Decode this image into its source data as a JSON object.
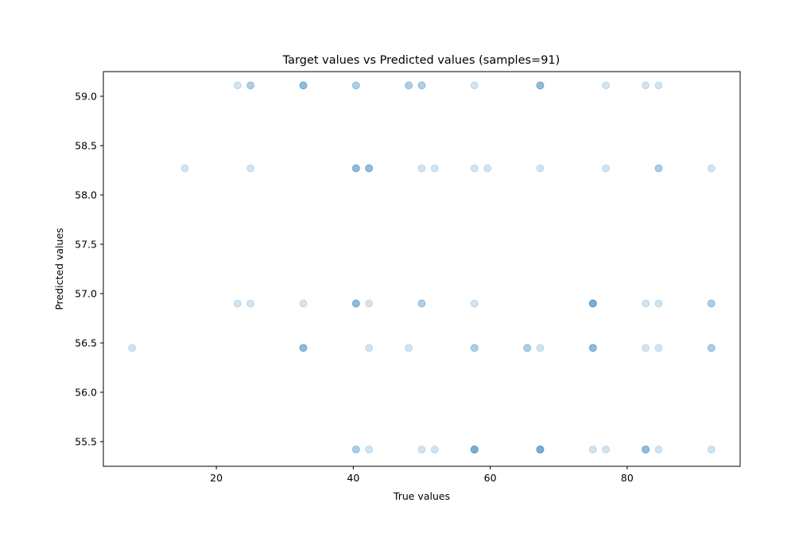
{
  "chart_data": {
    "type": "scatter",
    "title": "Target values vs Predicted values (samples=91)",
    "xlabel": "True values",
    "ylabel": "Predicted values",
    "xlim": [
      3.5,
      96.5
    ],
    "ylim": [
      55.25,
      59.25
    ],
    "xticks": [
      20,
      40,
      60,
      80
    ],
    "yticks": [
      55.5,
      56.0,
      56.5,
      57.0,
      57.5,
      58.0,
      58.5,
      59.0
    ],
    "xtick_labels": [
      "20",
      "40",
      "60",
      "80"
    ],
    "ytick_labels": [
      "55.5",
      "56.0",
      "56.5",
      "57.0",
      "57.5",
      "58.0",
      "58.5",
      "59.0"
    ],
    "grid": false,
    "legend": false,
    "marker_color": "#1f77b4",
    "marker_alpha": 0.2,
    "points": [
      {
        "x": 23.1,
        "y": 59.11
      },
      {
        "x": 25.0,
        "y": 59.11
      },
      {
        "x": 25.0,
        "y": 59.11
      },
      {
        "x": 32.7,
        "y": 59.11
      },
      {
        "x": 32.7,
        "y": 59.11
      },
      {
        "x": 32.7,
        "y": 59.11
      },
      {
        "x": 40.4,
        "y": 59.11
      },
      {
        "x": 40.4,
        "y": 59.11
      },
      {
        "x": 48.1,
        "y": 59.11
      },
      {
        "x": 48.1,
        "y": 59.11
      },
      {
        "x": 50.0,
        "y": 59.11
      },
      {
        "x": 50.0,
        "y": 59.11
      },
      {
        "x": 57.7,
        "y": 59.11
      },
      {
        "x": 67.3,
        "y": 59.11
      },
      {
        "x": 67.3,
        "y": 59.11
      },
      {
        "x": 67.3,
        "y": 59.11
      },
      {
        "x": 76.9,
        "y": 59.11
      },
      {
        "x": 82.7,
        "y": 59.11
      },
      {
        "x": 84.6,
        "y": 59.11
      },
      {
        "x": 15.4,
        "y": 58.27
      },
      {
        "x": 25.0,
        "y": 58.27
      },
      {
        "x": 40.4,
        "y": 58.27
      },
      {
        "x": 40.4,
        "y": 58.27
      },
      {
        "x": 40.4,
        "y": 58.27
      },
      {
        "x": 42.3,
        "y": 58.27
      },
      {
        "x": 42.3,
        "y": 58.27
      },
      {
        "x": 42.3,
        "y": 58.27
      },
      {
        "x": 50.0,
        "y": 58.27
      },
      {
        "x": 51.9,
        "y": 58.27
      },
      {
        "x": 57.7,
        "y": 58.27
      },
      {
        "x": 59.6,
        "y": 58.27
      },
      {
        "x": 67.3,
        "y": 58.27
      },
      {
        "x": 76.9,
        "y": 58.27
      },
      {
        "x": 84.6,
        "y": 58.27
      },
      {
        "x": 84.6,
        "y": 58.27
      },
      {
        "x": 92.3,
        "y": 58.27
      },
      {
        "x": 23.1,
        "y": 56.9
      },
      {
        "x": 25.0,
        "y": 56.9
      },
      {
        "x": 32.7,
        "y": 56.9
      },
      {
        "x": 40.4,
        "y": 56.9
      },
      {
        "x": 40.4,
        "y": 56.9
      },
      {
        "x": 40.4,
        "y": 56.9
      },
      {
        "x": 42.3,
        "y": 56.9
      },
      {
        "x": 50.0,
        "y": 56.9
      },
      {
        "x": 50.0,
        "y": 56.9
      },
      {
        "x": 57.7,
        "y": 56.9
      },
      {
        "x": 75.0,
        "y": 56.9
      },
      {
        "x": 75.0,
        "y": 56.9
      },
      {
        "x": 75.0,
        "y": 56.9
      },
      {
        "x": 75.0,
        "y": 56.9
      },
      {
        "x": 82.7,
        "y": 56.9
      },
      {
        "x": 84.6,
        "y": 56.9
      },
      {
        "x": 92.3,
        "y": 56.9
      },
      {
        "x": 92.3,
        "y": 56.9
      },
      {
        "x": 7.7,
        "y": 56.45
      },
      {
        "x": 32.7,
        "y": 56.45
      },
      {
        "x": 32.7,
        "y": 56.45
      },
      {
        "x": 32.7,
        "y": 56.45
      },
      {
        "x": 42.3,
        "y": 56.45
      },
      {
        "x": 48.1,
        "y": 56.45
      },
      {
        "x": 57.7,
        "y": 56.45
      },
      {
        "x": 57.7,
        "y": 56.45
      },
      {
        "x": 65.4,
        "y": 56.45
      },
      {
        "x": 65.4,
        "y": 56.45
      },
      {
        "x": 67.3,
        "y": 56.45
      },
      {
        "x": 75.0,
        "y": 56.45
      },
      {
        "x": 75.0,
        "y": 56.45
      },
      {
        "x": 75.0,
        "y": 56.45
      },
      {
        "x": 82.7,
        "y": 56.45
      },
      {
        "x": 84.6,
        "y": 56.45
      },
      {
        "x": 92.3,
        "y": 56.45
      },
      {
        "x": 92.3,
        "y": 56.45
      },
      {
        "x": 40.4,
        "y": 55.42
      },
      {
        "x": 40.4,
        "y": 55.42
      },
      {
        "x": 42.3,
        "y": 55.42
      },
      {
        "x": 50.0,
        "y": 55.42
      },
      {
        "x": 51.9,
        "y": 55.42
      },
      {
        "x": 57.7,
        "y": 55.42
      },
      {
        "x": 57.7,
        "y": 55.42
      },
      {
        "x": 57.7,
        "y": 55.42
      },
      {
        "x": 57.7,
        "y": 55.42
      },
      {
        "x": 67.3,
        "y": 55.42
      },
      {
        "x": 67.3,
        "y": 55.42
      },
      {
        "x": 67.3,
        "y": 55.42
      },
      {
        "x": 67.3,
        "y": 55.42
      },
      {
        "x": 75.0,
        "y": 55.42
      },
      {
        "x": 76.9,
        "y": 55.42
      },
      {
        "x": 82.7,
        "y": 55.42
      },
      {
        "x": 82.7,
        "y": 55.42
      },
      {
        "x": 82.7,
        "y": 55.42
      },
      {
        "x": 84.6,
        "y": 55.42
      },
      {
        "x": 92.3,
        "y": 55.42
      }
    ]
  }
}
